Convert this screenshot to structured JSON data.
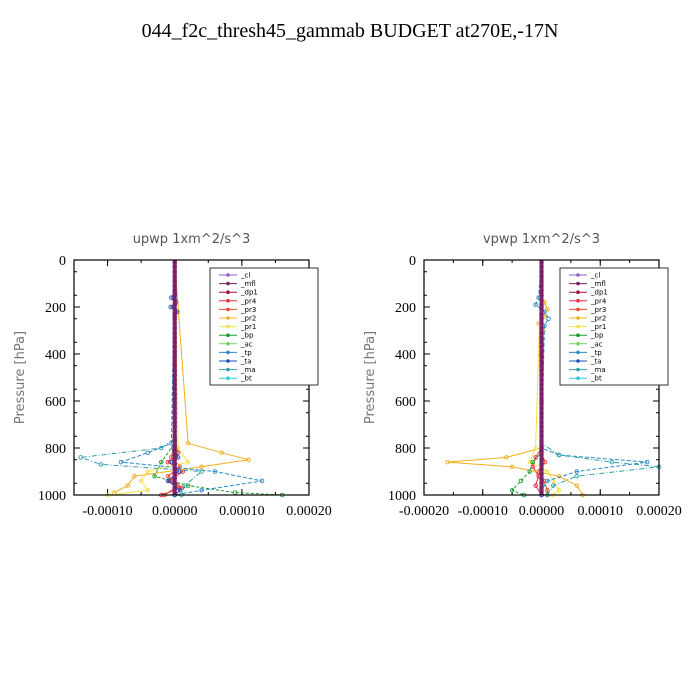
{
  "title": "044_f2c_thresh45_gammab  BUDGET at270E,-17N",
  "colors": {
    "_cl": "#8f5fc8",
    "_mfl": "#7a1f66",
    "_dp1": "#a0103a",
    "_pr4": "#e8283c",
    "_pr3": "#e84a2a",
    "_pr2": "#f0b020",
    "_pr1": "#f7e04a",
    "_bp": "#1a9a2a",
    "_ac": "#70d060",
    "_tp": "#2a8ac8",
    "_ta": "#1a50b8",
    "_ma": "#30a0a8",
    "_bt": "#30c8d8"
  },
  "chart_data": [
    {
      "type": "line",
      "title": "upwp   1xm^2/s^3",
      "ylabel": "Pressure [hPa]",
      "xlim": [
        -0.00015,
        0.0002
      ],
      "ylim": [
        1000,
        0
      ],
      "xticks": [
        "-0.00010",
        "0.00000",
        "0.00010",
        "0.00020"
      ],
      "xtick_values": [
        -0.0001,
        0,
        0.0001,
        0.0002
      ],
      "yticks": [
        "0",
        "200",
        "400",
        "600",
        "800",
        "1000"
      ],
      "ytick_values": [
        0,
        200,
        400,
        600,
        800,
        1000
      ],
      "legend": [
        "_cl",
        "_mfl",
        "_dp1",
        "_pr4",
        "_pr3",
        "_pr2",
        "_pr1",
        "_bp",
        "_ac",
        "_tp",
        "_ta",
        "_ma",
        "_bt"
      ],
      "legend_position": "top-right",
      "series": [
        {
          "name": "_cl",
          "p": [
            0,
            200,
            400,
            600,
            800,
            1000
          ],
          "x": [
            0,
            0,
            0,
            0,
            0,
            0
          ]
        },
        {
          "name": "_mfl",
          "p": [
            0,
            200,
            400,
            600,
            800,
            1000
          ],
          "x": [
            0,
            0,
            0,
            0,
            0,
            0
          ]
        },
        {
          "name": "_dp1",
          "p": [
            0,
            200,
            400,
            600,
            800,
            1000
          ],
          "x": [
            0,
            0,
            0,
            0,
            0,
            0
          ]
        },
        {
          "name": "_pr4",
          "p": [
            0,
            760,
            820,
            860,
            900,
            940,
            970,
            1000
          ],
          "x": [
            0,
            0,
            5e-06,
            -1e-05,
            1.2e-05,
            -8e-06,
            1e-05,
            -2e-05
          ]
        },
        {
          "name": "_pr3",
          "p": [
            0,
            760,
            840,
            880,
            920,
            960,
            1000
          ],
          "x": [
            0,
            0,
            -5e-06,
            8e-06,
            -1e-05,
            5e-06,
            -1.5e-05
          ]
        },
        {
          "name": "_pr2",
          "p": [
            0,
            780,
            820,
            850,
            880,
            920,
            960,
            990
          ],
          "x": [
            0,
            2e-05,
            7e-05,
            0.00011,
            4e-05,
            -6e-05,
            -7e-05,
            -9e-05
          ]
        },
        {
          "name": "_pr1",
          "p": [
            0,
            800,
            860,
            900,
            940,
            980,
            1000
          ],
          "x": [
            0,
            5e-06,
            2e-05,
            -4e-05,
            -5e-05,
            -4e-05,
            -0.0001
          ]
        },
        {
          "name": "_bp",
          "p": [
            0,
            780,
            860,
            920,
            960,
            990,
            1000
          ],
          "x": [
            0,
            0,
            -2e-05,
            -3e-05,
            2e-05,
            9e-05,
            0.00016
          ]
        },
        {
          "name": "_ac",
          "p": [
            0,
            200,
            400,
            600,
            800,
            1000
          ],
          "x": [
            0,
            0,
            0,
            0,
            0,
            0
          ]
        },
        {
          "name": "_tp",
          "p": [
            0,
            780,
            820,
            860,
            900,
            940,
            980,
            1000
          ],
          "x": [
            0,
            -5e-06,
            -4e-05,
            -8e-05,
            6e-05,
            0.00013,
            4e-05,
            0
          ]
        },
        {
          "name": "_ta",
          "p": [
            0,
            140,
            160,
            180,
            200,
            220,
            240,
            760,
            800,
            840,
            860,
            900,
            940,
            980,
            1000
          ],
          "x": [
            0,
            0,
            -5e-06,
            2e-06,
            -6e-06,
            4e-06,
            0,
            0,
            -2e-06,
            5e-06,
            -4e-06,
            6e-06,
            -1e-05,
            8e-06,
            0
          ]
        },
        {
          "name": "_ma",
          "p": [
            0,
            760,
            800,
            840,
            870,
            900,
            960,
            1000
          ],
          "x": [
            0,
            0,
            -2e-05,
            -0.00014,
            -0.00011,
            4e-05,
            1.5e-05,
            1e-05
          ]
        },
        {
          "name": "_bt",
          "p": [
            0,
            200,
            400,
            600,
            800,
            1000
          ],
          "x": [
            0,
            0,
            0,
            0,
            0,
            0
          ]
        }
      ]
    },
    {
      "type": "line",
      "title": "vpwp   1xm^2/s^3",
      "ylabel": "Pressure [hPa]",
      "xlim": [
        -0.0002,
        0.0002
      ],
      "ylim": [
        1000,
        0
      ],
      "xticks": [
        "-0.00020",
        "-0.00010",
        "0.00000",
        "0.00010",
        "0.00020"
      ],
      "xtick_values": [
        -0.0002,
        -0.0001,
        0,
        0.0001,
        0.0002
      ],
      "yticks": [
        "0",
        "200",
        "400",
        "600",
        "800",
        "1000"
      ],
      "ytick_values": [
        0,
        200,
        400,
        600,
        800,
        1000
      ],
      "legend": [
        "_cl",
        "_mfl",
        "_dp1",
        "_pr4",
        "_pr3",
        "_pr2",
        "_pr1",
        "_bp",
        "_ac",
        "_tp",
        "_ta",
        "_ma",
        "_bt"
      ],
      "legend_position": "top-right",
      "series": [
        {
          "name": "_cl",
          "p": [
            0,
            200,
            400,
            600,
            800,
            1000
          ],
          "x": [
            0,
            0,
            0,
            0,
            0,
            0
          ]
        },
        {
          "name": "_mfl",
          "p": [
            0,
            200,
            400,
            600,
            800,
            1000
          ],
          "x": [
            0,
            0,
            0,
            0,
            0,
            0
          ]
        },
        {
          "name": "_dp1",
          "p": [
            0,
            200,
            400,
            600,
            800,
            1000
          ],
          "x": [
            0,
            0,
            0,
            0,
            0,
            0
          ]
        },
        {
          "name": "_pr4",
          "p": [
            0,
            800,
            840,
            880,
            920,
            960,
            1000
          ],
          "x": [
            0,
            0,
            -1e-05,
            -1.5e-05,
            -5e-06,
            -1e-05,
            0
          ]
        },
        {
          "name": "_pr3",
          "p": [
            0,
            820,
            860,
            900,
            940,
            980,
            1000
          ],
          "x": [
            0,
            0,
            6e-06,
            -5e-06,
            4e-06,
            1e-05,
            1e-05
          ]
        },
        {
          "name": "_pr2",
          "p": [
            0,
            150,
            180,
            210,
            240,
            270,
            300,
            330,
            800,
            840,
            860,
            880,
            920,
            960,
            1000
          ],
          "x": [
            0,
            0,
            5e-06,
            1e-05,
            5e-06,
            -5e-06,
            3e-06,
            0,
            0,
            -6e-05,
            -0.00016,
            -5e-05,
            3e-05,
            6e-05,
            7e-05
          ]
        },
        {
          "name": "_pr1",
          "p": [
            0,
            800,
            860,
            900,
            940,
            980,
            1000
          ],
          "x": [
            0,
            -1e-05,
            -2e-05,
            1e-05,
            2e-05,
            3e-05,
            2e-05
          ]
        },
        {
          "name": "_bp",
          "p": [
            0,
            820,
            860,
            900,
            940,
            980,
            1000
          ],
          "x": [
            0,
            0,
            -1.5e-05,
            -2e-05,
            -3.5e-05,
            -5e-05,
            -3e-05
          ]
        },
        {
          "name": "_ac",
          "p": [
            0,
            200,
            400,
            600,
            800,
            1000
          ],
          "x": [
            0,
            0,
            0,
            0,
            0,
            0
          ]
        },
        {
          "name": "_tp",
          "p": [
            0,
            160,
            190,
            220,
            250,
            280,
            800,
            830,
            860,
            900,
            940,
            980,
            1000
          ],
          "x": [
            0,
            -5e-06,
            -1e-05,
            5e-06,
            1.2e-05,
            5e-06,
            0,
            3e-05,
            0.00018,
            6e-05,
            1e-05,
            0,
            0
          ]
        },
        {
          "name": "_ta",
          "p": [
            0,
            200,
            400,
            600,
            800,
            1000
          ],
          "x": [
            0,
            0,
            0,
            0,
            0,
            0
          ]
        },
        {
          "name": "_ma",
          "p": [
            0,
            780,
            830,
            860,
            880,
            920,
            960,
            1000
          ],
          "x": [
            0,
            0,
            3e-05,
            0.00012,
            0.0002,
            6e-05,
            2e-05,
            1e-05
          ]
        },
        {
          "name": "_bt",
          "p": [
            0,
            200,
            400,
            600,
            800,
            1000
          ],
          "x": [
            0,
            0,
            0,
            0,
            0,
            0
          ]
        }
      ]
    }
  ]
}
